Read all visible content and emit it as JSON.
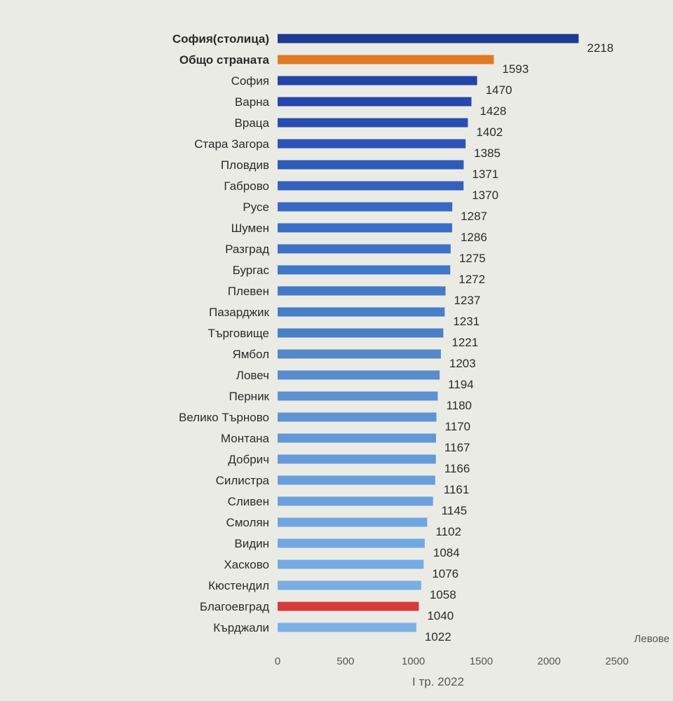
{
  "chart_data": {
    "type": "bar",
    "orientation": "horizontal",
    "categories": [
      "София(столица)",
      "Общо страната",
      "София",
      "Варна",
      "Враца",
      "Стара Загора",
      "Пловдив",
      "Габрово",
      "Русе",
      "Шумен",
      "Разград",
      "Бургас",
      "Плевен",
      "Пазарджик",
      "Търговище",
      "Ямбол",
      "Ловеч",
      "Перник",
      "Велико Търново",
      "Монтана",
      "Добрич",
      "Силистра",
      "Сливен",
      "Смолян",
      "Видин",
      "Хасково",
      "Кюстендил",
      "Благоевград",
      "Кърджали"
    ],
    "values": [
      2218,
      1593,
      1470,
      1428,
      1402,
      1385,
      1371,
      1370,
      1287,
      1286,
      1275,
      1272,
      1237,
      1231,
      1221,
      1203,
      1194,
      1180,
      1170,
      1167,
      1166,
      1161,
      1145,
      1102,
      1084,
      1076,
      1058,
      1040,
      1022
    ],
    "bar_colors": [
      "#1f3a93",
      "#e07b24",
      "#2544a8",
      "#2747ac",
      "#2a4db1",
      "#2d54b6",
      "#305bba",
      "#3361bd",
      "#3869c2",
      "#3a6ec5",
      "#3d72c7",
      "#4077c9",
      "#4479c6",
      "#477ec8",
      "#4a81c6",
      "#5488c9",
      "#5a8ccc",
      "#5c91d0",
      "#5f94d3",
      "#6298d6",
      "#659bd8",
      "#689edb",
      "#6ba1dd",
      "#6fa5e0",
      "#72a8e1",
      "#75abe3",
      "#79aee4",
      "#d63a3a",
      "#7cb0e6"
    ],
    "xlim": [
      0,
      2500
    ],
    "xticks": [
      "0",
      "500",
      "1000",
      "1500",
      "2000",
      "2500"
    ],
    "xlabel": "I тр. 2022",
    "unit": "Левове",
    "grid": false
  }
}
